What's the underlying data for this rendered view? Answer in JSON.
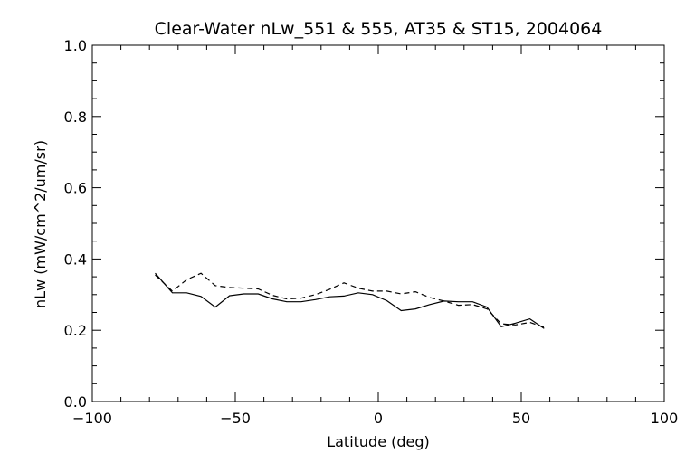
{
  "chart_data": {
    "type": "line",
    "title": "Clear-Water nLw_551 & 555, AT35 & ST15, 2004064",
    "xlabel": "Latitude (deg)",
    "ylabel": "nLw (mW/cm^2/um/sr)",
    "xlim": [
      -100,
      100
    ],
    "ylim": [
      0.0,
      1.0
    ],
    "xticks": [
      -100,
      -50,
      0,
      50,
      100
    ],
    "xtick_labels": [
      "−100",
      "−50",
      "0",
      "50",
      "100"
    ],
    "yticks": [
      0.0,
      0.2,
      0.4,
      0.6,
      0.8,
      1.0
    ],
    "ytick_labels": [
      "0.0",
      "0.2",
      "0.4",
      "0.6",
      "0.8",
      "1.0"
    ],
    "grid": false,
    "series": [
      {
        "style": "solid",
        "x": [
          -78,
          -72,
          -67,
          -62,
          -57,
          -52,
          -47,
          -42,
          -37,
          -32,
          -27,
          -22,
          -17,
          -12,
          -7,
          -2,
          3,
          8,
          13,
          18,
          23,
          28,
          33,
          38,
          43,
          48,
          53,
          58
        ],
        "y": [
          0.36,
          0.305,
          0.305,
          0.295,
          0.265,
          0.297,
          0.302,
          0.302,
          0.288,
          0.28,
          0.28,
          0.286,
          0.294,
          0.296,
          0.305,
          0.3,
          0.283,
          0.255,
          0.26,
          0.272,
          0.282,
          0.28,
          0.28,
          0.265,
          0.21,
          0.22,
          0.232,
          0.205
        ]
      },
      {
        "style": "dashed",
        "x": [
          -78,
          -72,
          -67,
          -62,
          -57,
          -52,
          -47,
          -42,
          -37,
          -32,
          -27,
          -22,
          -17,
          -12,
          -7,
          -2,
          3,
          8,
          13,
          18,
          23,
          28,
          33,
          38,
          43,
          48,
          53,
          58
        ],
        "y": [
          0.355,
          0.31,
          0.342,
          0.36,
          0.325,
          0.32,
          0.318,
          0.316,
          0.298,
          0.288,
          0.29,
          0.3,
          0.315,
          0.333,
          0.318,
          0.31,
          0.31,
          0.302,
          0.308,
          0.292,
          0.282,
          0.27,
          0.272,
          0.26,
          0.218,
          0.215,
          0.222,
          0.208
        ]
      }
    ]
  }
}
